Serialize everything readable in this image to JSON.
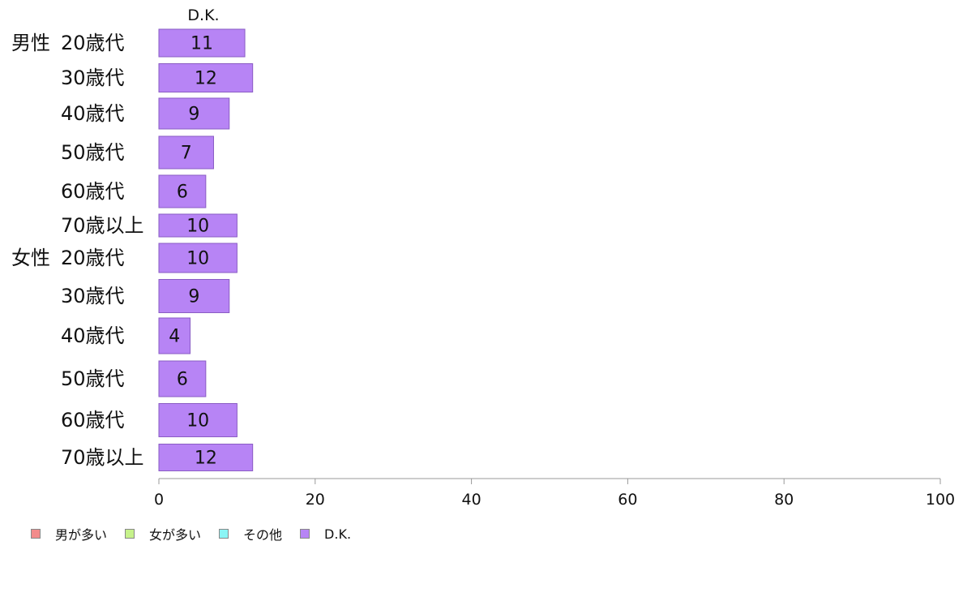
{
  "chart_data": {
    "type": "bar",
    "orientation": "horizontal",
    "column_header": "D.K.",
    "groups": [
      {
        "label": "男性",
        "categories": [
          "20歳代",
          "30歳代",
          "40歳代",
          "50歳代",
          "60歳代",
          "70歳以上"
        ],
        "values": [
          11,
          12,
          9,
          7,
          6,
          10
        ]
      },
      {
        "label": "女性",
        "categories": [
          "20歳代",
          "30歳代",
          "40歳代",
          "50歳代",
          "60歳代",
          "70歳以上"
        ],
        "values": [
          10,
          9,
          4,
          6,
          10,
          12
        ]
      }
    ],
    "series": [
      {
        "name": "男が多い",
        "color": "#f28b8b"
      },
      {
        "name": "女が多い",
        "color": "#c6f28b"
      },
      {
        "name": "その他",
        "color": "#8bf5f5"
      },
      {
        "name": "D.K.",
        "color": "#b784f5"
      }
    ],
    "xlim": [
      0,
      100
    ],
    "xticks": [
      "0",
      "20",
      "40",
      "60",
      "80",
      "100"
    ],
    "legend_position": "bottom-left",
    "grid": false
  }
}
